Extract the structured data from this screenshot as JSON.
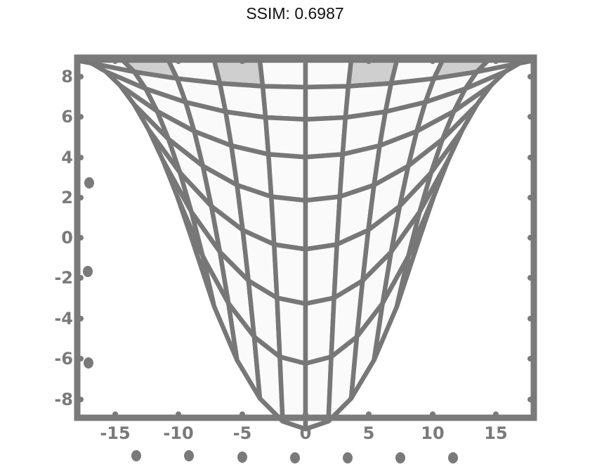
{
  "title": "SSIM: 0.6987",
  "x_tick_labels": [
    "-15",
    "-10",
    "-5",
    "0",
    "5",
    "10",
    "15"
  ],
  "y_tick_labels": [
    "8",
    "6",
    "4",
    "2",
    "0",
    "-2",
    "-4",
    "-6",
    "-8"
  ],
  "colors": {
    "frame": "#7a7a7a",
    "mesh": "#777777",
    "fill_light": "#fafafa",
    "fill_shaded": "#cfcfcf"
  }
}
